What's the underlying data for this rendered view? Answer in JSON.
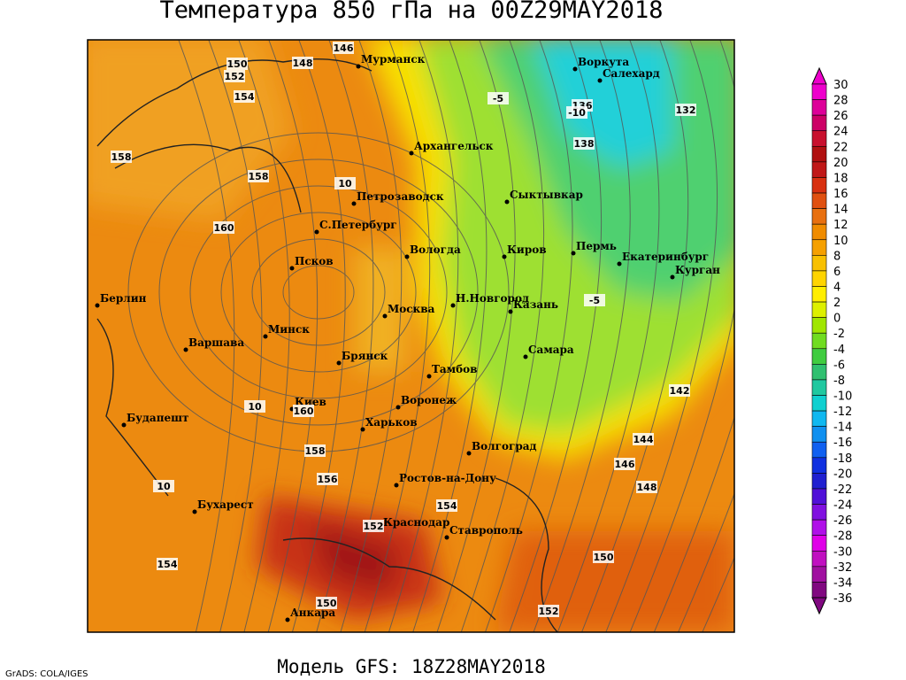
{
  "title": "Температура 850 гПа на 00Z29MAY2018",
  "footer": "Модель GFS: 18Z28MAY2018",
  "credit": "GrADS: COLA/IGES",
  "cities": [
    "Мурманск",
    "Архангельск",
    "Воркута",
    "Салехард",
    "Сыктывкар",
    "Петрозаводск",
    "С.Петербург",
    "Вологда",
    "Киров",
    "Пермь",
    "Екатеринбург",
    "Курган",
    "Псков",
    "Москва",
    "Н.Новгород",
    "Казань",
    "Берлин",
    "Минск",
    "Варшава",
    "Брянск",
    "Тамбов",
    "Самара",
    "Киев",
    "Воронеж",
    "Будапешт",
    "Харьков",
    "Волгоград",
    "Ростов-на-Дону",
    "Бухарест",
    "Краснодар",
    "Ставрополь",
    "Анкара"
  ],
  "contour_labels": [
    146,
    148,
    150,
    152,
    154,
    158,
    158,
    160,
    160,
    156,
    158,
    154,
    152,
    150,
    154,
    150,
    152,
    142,
    144,
    146,
    148,
    136,
    138,
    132,
    -5,
    -5,
    -10,
    10,
    10,
    10
  ],
  "colorbar": {
    "labels": [
      30,
      28,
      26,
      24,
      22,
      20,
      18,
      16,
      14,
      12,
      10,
      8,
      6,
      4,
      2,
      0,
      -2,
      -4,
      -6,
      -8,
      -10,
      -12,
      -14,
      -16,
      -18,
      -20,
      -22,
      -24,
      -26,
      -28,
      -30,
      -32,
      -34,
      -36
    ],
    "colors": [
      "#ee00cc",
      "#dd0099",
      "#cc0066",
      "#c8102e",
      "#b01010",
      "#c01818",
      "#d83010",
      "#e05010",
      "#e87010",
      "#f08c00",
      "#f5a000",
      "#f8c000",
      "#ffd400",
      "#ffee00",
      "#ddf000",
      "#a0e600",
      "#70dc20",
      "#40cc40",
      "#30c070",
      "#20c8a0",
      "#10d0d0",
      "#10b8f0",
      "#1090f0",
      "#1060f0",
      "#1030e0",
      "#2020d0",
      "#5010d8",
      "#8010e0",
      "#b010e8",
      "#e000e8",
      "#c010c0",
      "#a010a0",
      "#800880"
    ]
  }
}
